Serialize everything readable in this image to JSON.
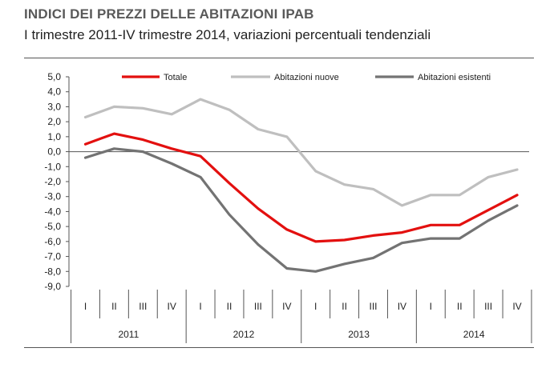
{
  "header": {
    "title": "INDICI DEI PREZZI DELLE ABITAZIONI IPAB",
    "subtitle": "I trimestre 2011-IV trimestre 2014, variazioni percentuali tendenziali"
  },
  "chart_data": {
    "type": "line",
    "ylim": [
      -9,
      5
    ],
    "y_ticks": [
      "5,0",
      "4,0",
      "3,0",
      "2,0",
      "1,0",
      "0,0",
      "-1,0",
      "-2,0",
      "-3,0",
      "-4,0",
      "-5,0",
      "-6,0",
      "-7,0",
      "-8,0",
      "-9,0"
    ],
    "x": [
      "I",
      "II",
      "III",
      "IV",
      "I",
      "II",
      "III",
      "IV",
      "I",
      "II",
      "III",
      "IV",
      "I",
      "II",
      "III",
      "IV"
    ],
    "years": [
      "2011",
      "2012",
      "2013",
      "2014"
    ],
    "grid": false,
    "legend_placement": "top",
    "series": [
      {
        "name": "Totale",
        "color": "#e3100f",
        "values": [
          0.5,
          1.2,
          0.8,
          0.2,
          -0.3,
          -2.1,
          -3.8,
          -5.2,
          -6.0,
          -5.9,
          -5.6,
          -5.4,
          -4.9,
          -4.9,
          -3.9,
          -2.9
        ]
      },
      {
        "name": "Abitazioni nuove",
        "color": "#bfbfbf",
        "values": [
          2.3,
          3.0,
          2.9,
          2.5,
          3.5,
          2.8,
          1.5,
          1.0,
          -1.3,
          -2.2,
          -2.5,
          -3.6,
          -2.9,
          -2.9,
          -1.7,
          -1.2
        ]
      },
      {
        "name": "Abitazioni esistenti",
        "color": "#737373",
        "values": [
          -0.4,
          0.2,
          0.0,
          -0.8,
          -1.7,
          -4.2,
          -6.2,
          -7.8,
          -8.0,
          -7.5,
          -7.1,
          -6.1,
          -5.8,
          -5.8,
          -4.6,
          -3.6
        ]
      }
    ]
  }
}
